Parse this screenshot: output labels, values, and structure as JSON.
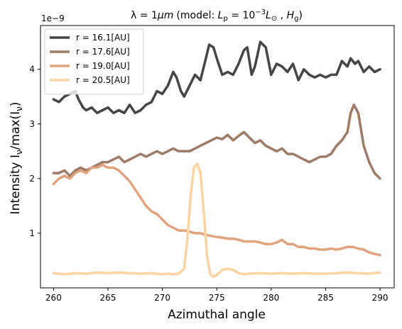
{
  "chart_data": {
    "type": "line",
    "title": "λ = 1 μm (model: L_p = 10^-3 L_⊙ , H_g)",
    "title_parts": {
      "prefix": "λ = 1",
      "unit": "μm",
      "model_open": "(model: ",
      "lp": "L",
      "lp_sub": "p",
      "eq": " = 10",
      "exp": "−3",
      "lsun": "L",
      "lsun_sub": "⊙",
      "comma": " , ",
      "hg": "H",
      "hg_sub": "g",
      "close": ")"
    },
    "xlabel": "Azimuthal angle",
    "ylabel": "Intensity I_ν/max(I_ν)",
    "ylabel_parts": {
      "main": "Intensity I",
      "sub1": "ν",
      "mid": "/max(I",
      "sub2": "ν",
      "end": ")"
    },
    "offset_text": "1e−9",
    "xlim": [
      258.8,
      291.3
    ],
    "ylim": [
      0.0,
      4.8
    ],
    "x_ticks": [
      260,
      265,
      270,
      275,
      280,
      285,
      290
    ],
    "x_tick_labels": [
      "260",
      "265",
      "270",
      "275",
      "280",
      "285",
      "290"
    ],
    "y_ticks": [
      1,
      2,
      3,
      4
    ],
    "y_tick_labels": [
      "1",
      "2",
      "3",
      "4"
    ],
    "legend_position": "upper-left",
    "series": [
      {
        "name": "r = 16.1[AU]",
        "color": "#454545",
        "x": [
          260,
          260.5,
          261,
          261.5,
          262,
          262.3,
          262.7,
          263,
          263.5,
          264,
          264.5,
          265,
          265.5,
          266,
          266.5,
          267,
          267.5,
          268,
          268.5,
          269,
          269.5,
          270,
          270.5,
          271,
          271.3,
          271.7,
          272,
          272.5,
          273,
          273.5,
          274,
          274.3,
          274.7,
          275,
          275.5,
          276,
          276.5,
          277,
          277.5,
          277.8,
          278.2,
          278.5,
          279,
          279.5,
          280,
          280.5,
          281,
          281.5,
          282,
          282.5,
          283,
          283.5,
          284,
          284.5,
          285,
          285.5,
          286,
          286.5,
          287,
          287.3,
          287.7,
          288,
          288.5,
          289,
          289.5,
          290
        ],
        "y": [
          3.45,
          3.4,
          3.5,
          3.55,
          3.6,
          3.45,
          3.3,
          3.25,
          3.3,
          3.2,
          3.25,
          3.3,
          3.2,
          3.25,
          3.2,
          3.35,
          3.2,
          3.25,
          3.35,
          3.4,
          3.6,
          3.55,
          3.7,
          3.95,
          3.85,
          3.6,
          3.5,
          3.7,
          3.9,
          3.8,
          4.2,
          4.45,
          4.4,
          4.2,
          3.9,
          3.95,
          3.9,
          4.1,
          4.35,
          4.4,
          3.9,
          4.05,
          4.5,
          4.4,
          3.9,
          4.1,
          4.05,
          3.95,
          4.1,
          3.8,
          4.0,
          3.9,
          3.85,
          3.9,
          3.85,
          3.9,
          3.9,
          4.15,
          4.05,
          4.2,
          4.1,
          4.15,
          3.95,
          4.05,
          3.95,
          4.0
        ]
      },
      {
        "name": "r = 17.6[AU]",
        "color": "#9e7b66",
        "x": [
          260,
          260.5,
          261,
          261.5,
          262,
          262.5,
          263,
          263.5,
          264,
          264.5,
          265,
          265.5,
          266,
          266.5,
          267,
          267.5,
          268,
          268.5,
          269,
          269.5,
          270,
          270.5,
          271,
          271.5,
          272,
          272.5,
          273,
          273.5,
          274,
          274.5,
          275,
          275.5,
          276,
          276.5,
          277,
          277.5,
          278,
          278.5,
          279,
          279.5,
          280,
          280.5,
          281,
          281.5,
          282,
          282.5,
          283,
          283.5,
          284,
          284.5,
          285,
          285.5,
          286,
          286.5,
          287,
          287.3,
          287.6,
          288,
          288.5,
          289,
          289.5,
          290
        ],
        "y": [
          2.1,
          2.1,
          2.15,
          2.05,
          2.15,
          2.2,
          2.15,
          2.2,
          2.25,
          2.3,
          2.3,
          2.35,
          2.4,
          2.3,
          2.35,
          2.4,
          2.45,
          2.4,
          2.45,
          2.5,
          2.45,
          2.5,
          2.55,
          2.5,
          2.5,
          2.5,
          2.55,
          2.6,
          2.65,
          2.7,
          2.75,
          2.72,
          2.8,
          2.7,
          2.78,
          2.85,
          2.75,
          2.65,
          2.7,
          2.6,
          2.55,
          2.5,
          2.55,
          2.45,
          2.45,
          2.4,
          2.35,
          2.3,
          2.35,
          2.4,
          2.4,
          2.45,
          2.6,
          2.7,
          2.85,
          3.2,
          3.35,
          3.2,
          2.6,
          2.3,
          2.1,
          2.0
        ]
      },
      {
        "name": "r = 19.0[AU]",
        "color": "#e2a27e",
        "x": [
          260,
          260.5,
          261,
          261.5,
          262,
          262.5,
          263,
          263.5,
          264,
          264.5,
          265,
          265.5,
          266,
          266.5,
          267,
          267.5,
          268,
          268.5,
          269,
          269.5,
          270,
          270.5,
          271,
          271.5,
          272,
          272.5,
          273,
          273.5,
          274,
          274.5,
          275,
          275.5,
          276,
          276.5,
          277,
          277.5,
          278,
          278.5,
          279,
          279.5,
          280,
          280.5,
          281,
          281.5,
          282,
          282.5,
          283,
          283.5,
          284,
          284.5,
          285,
          285.5,
          286,
          286.5,
          287,
          287.5,
          288,
          288.5,
          289,
          289.5,
          290
        ],
        "y": [
          1.9,
          2.0,
          2.05,
          2.0,
          2.1,
          2.15,
          2.1,
          2.2,
          2.2,
          2.25,
          2.2,
          2.2,
          2.15,
          2.05,
          1.95,
          1.8,
          1.65,
          1.5,
          1.4,
          1.35,
          1.25,
          1.15,
          1.1,
          1.05,
          1.05,
          1.03,
          1.0,
          1.0,
          0.97,
          0.95,
          0.93,
          0.92,
          0.9,
          0.9,
          0.88,
          0.85,
          0.85,
          0.85,
          0.83,
          0.8,
          0.8,
          0.83,
          0.88,
          0.8,
          0.8,
          0.75,
          0.75,
          0.72,
          0.72,
          0.7,
          0.7,
          0.72,
          0.7,
          0.72,
          0.75,
          0.75,
          0.72,
          0.7,
          0.65,
          0.62,
          0.6
        ]
      },
      {
        "name": "r = 20.5[AU]",
        "color": "#fcd4a2",
        "x": [
          260,
          261,
          262,
          263,
          264,
          265,
          266,
          267,
          268,
          269,
          270,
          270.5,
          271,
          271.5,
          272,
          272.3,
          272.6,
          272.9,
          273.2,
          273.5,
          273.8,
          274.1,
          274.4,
          274.7,
          275,
          275.5,
          276,
          276.5,
          277,
          277.5,
          278,
          279,
          280,
          281,
          282,
          283,
          284,
          285,
          286,
          287,
          288,
          289,
          290
        ],
        "y": [
          0.27,
          0.25,
          0.27,
          0.26,
          0.28,
          0.27,
          0.28,
          0.27,
          0.26,
          0.27,
          0.25,
          0.26,
          0.25,
          0.26,
          0.35,
          0.9,
          1.7,
          2.2,
          2.27,
          2.1,
          1.4,
          0.6,
          0.25,
          0.2,
          0.24,
          0.33,
          0.35,
          0.33,
          0.27,
          0.25,
          0.26,
          0.27,
          0.26,
          0.27,
          0.26,
          0.27,
          0.26,
          0.26,
          0.27,
          0.28,
          0.27,
          0.26,
          0.28
        ]
      }
    ]
  }
}
